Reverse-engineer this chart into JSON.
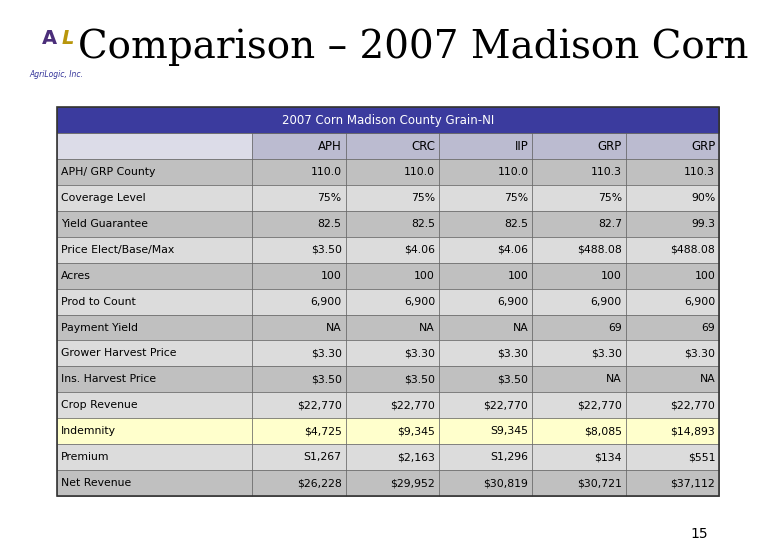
{
  "title": "Comparison – 2007 Madison Corn",
  "page_number": "15",
  "table_header": "2007 Corn Madison County Grain-NI",
  "col_headers": [
    "",
    "APH",
    "CRC",
    "IIP",
    "GRP",
    "GRP"
  ],
  "rows": [
    [
      "APH/ GRP County",
      "110.0",
      "110.0",
      "110.0",
      "110.3",
      "110.3"
    ],
    [
      "Coverage Level",
      "75%",
      "75%",
      "75%",
      "75%",
      "90%"
    ],
    [
      "Yield Guarantee",
      "82.5",
      "82.5",
      "82.5",
      "82.7",
      "99.3"
    ],
    [
      "Price Elect/Base/Max",
      "$3.50",
      "$4.06",
      "$4.06",
      "$488.08",
      "$488.08"
    ],
    [
      "Acres",
      "100",
      "100",
      "100",
      "100",
      "100"
    ],
    [
      "Prod to Count",
      "6,900",
      "6,900",
      "6,900",
      "6,900",
      "6,900"
    ],
    [
      "Payment Yield",
      "NA",
      "NA",
      "NA",
      "69",
      "69"
    ],
    [
      "Grower Harvest Price",
      "$3.30",
      "$3.30",
      "$3.30",
      "$3.30",
      "$3.30"
    ],
    [
      "Ins. Harvest Price",
      "$3.50",
      "$3.50",
      "$3.50",
      "NA",
      "NA"
    ],
    [
      "Crop Revenue",
      "$22,770",
      "$22,770",
      "$22,770",
      "$22,770",
      "$22,770"
    ],
    [
      "Indemnity",
      "$4,725",
      "$9,345",
      "S9,345",
      "$8,085",
      "$14,893"
    ],
    [
      "Premium",
      "S1,267",
      "$2,163",
      "S1,296",
      "$134",
      "$551"
    ],
    [
      "Net Revenue",
      "$26,228",
      "$29,952",
      "$30,819",
      "$30,721",
      "$37,112"
    ]
  ],
  "highlight_row_index": 10,
  "highlight_color": "#FFFFCC",
  "header_bg_color": "#3B3B9E",
  "header_text_color": "#FFFFFF",
  "col_header_bg_left": "#DCDCE8",
  "col_header_bg_right": "#BBBBD0",
  "title_color": "#000000",
  "title_fontsize": 28,
  "bg_color": "#FFFFFF",
  "stripe_colors": [
    "#C0C0C0",
    "#DCDCDC"
  ],
  "indemnity_left_col_color": "#FFFFB0",
  "left_bar_purple": "#4B2E7A",
  "left_bar_gold": "#B8960C",
  "top_bar_purple": "#4B2E7A",
  "top_bar_gold": "#B8960C",
  "font_size_data": 7.8,
  "font_size_header": 8.5,
  "font_size_col_header": 8.5
}
